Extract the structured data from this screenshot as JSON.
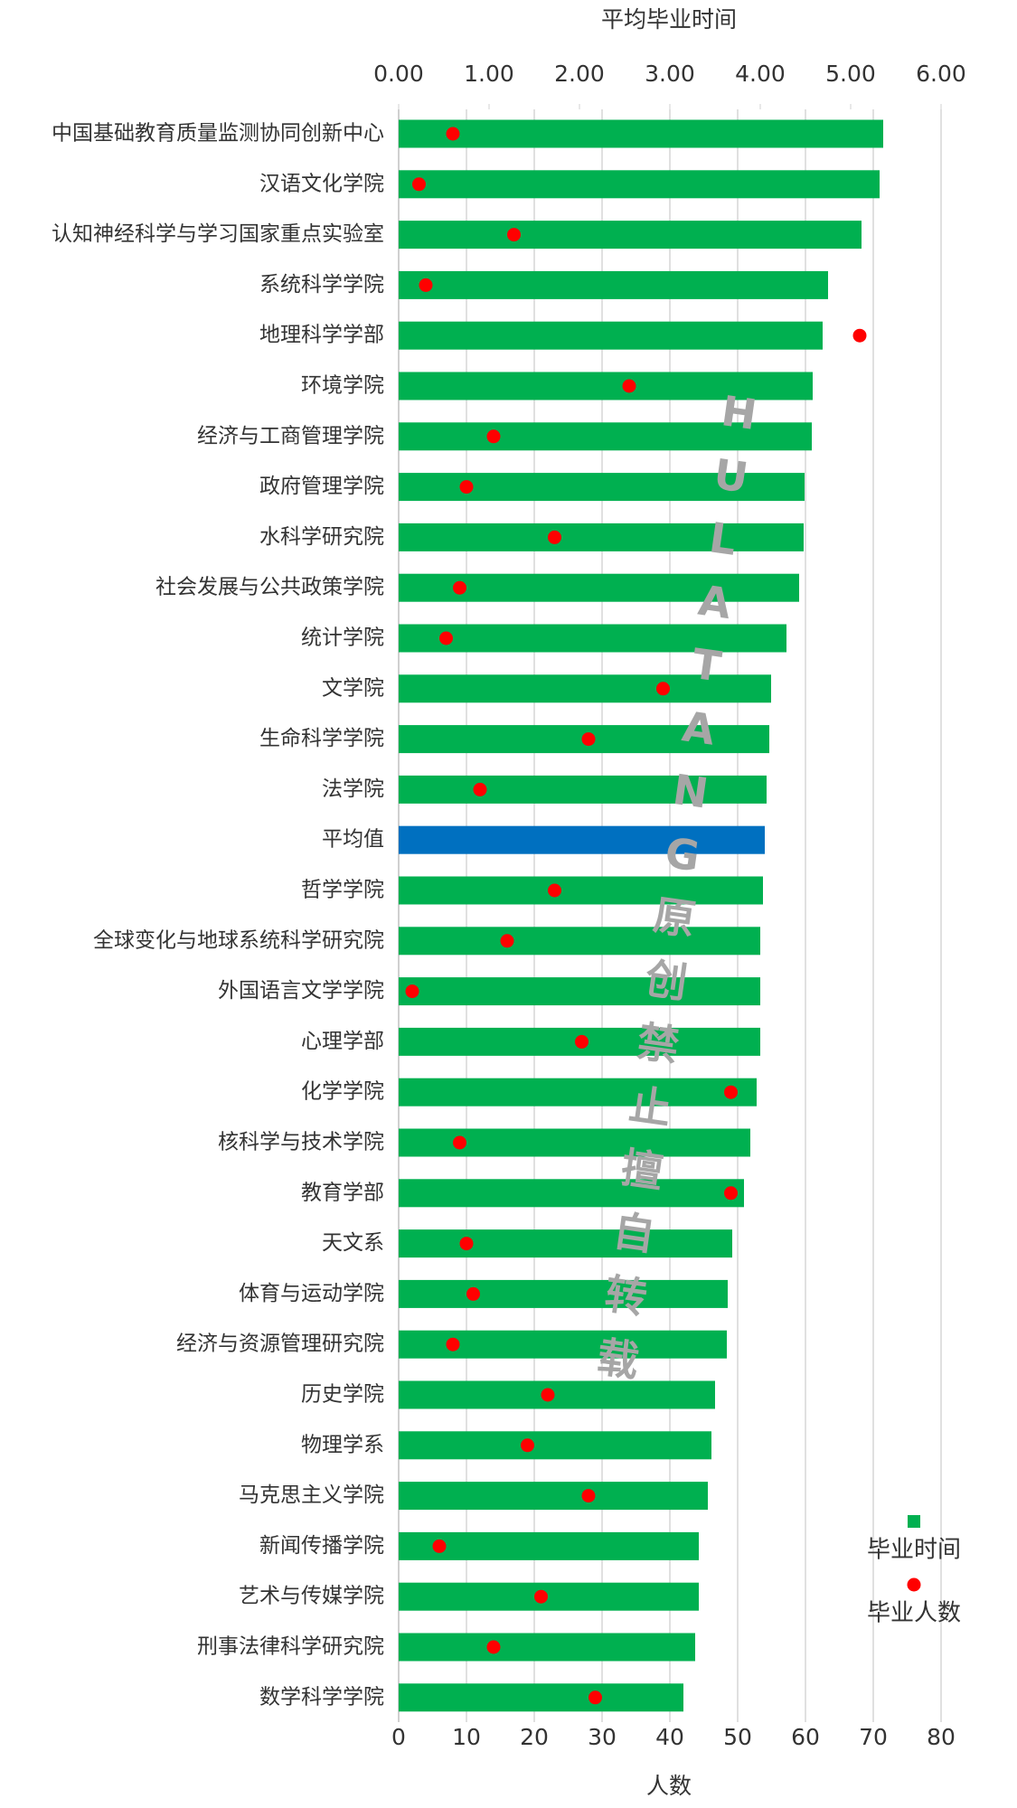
{
  "chart_data": {
    "type": "bar",
    "x2label": "平均毕业时间",
    "xlabel": "人数",
    "watermark": [
      "H",
      "U",
      "L",
      "A",
      "T",
      "A",
      "N",
      "G",
      "原",
      "创",
      "禁",
      "止",
      "擅",
      "自",
      "转",
      "载"
    ],
    "categories": [
      "中国基础教育质量监测协同创新中心",
      "汉语文化学院",
      "认知神经科学与学习国家重点实验室",
      "系统科学学院",
      "地理科学学部",
      "环境学院",
      "经济与工商管理学院",
      "政府管理学院",
      "水科学研究院",
      "社会发展与公共政策学院",
      "统计学院",
      "文学院",
      "生命科学学院",
      "法学院",
      "平均值",
      "哲学学院",
      "全球变化与地球系统科学研究院",
      "外国语言文学学院",
      "心理学部",
      "化学学院",
      "核科学与技术学院",
      "教育学部",
      "天文系",
      "体育与运动学院",
      "经济与资源管理研究院",
      "历史学院",
      "物理学系",
      "马克思主义学院",
      "新闻传播学院",
      "艺术与传媒学院",
      "刑事法律科学研究院",
      "数学科学学院"
    ],
    "series": [
      {
        "name": "毕业时间",
        "type": "bar",
        "axis": "x2",
        "color": "#00b050",
        "colors": [
          "#00b050",
          "#00b050",
          "#00b050",
          "#00b050",
          "#00b050",
          "#00b050",
          "#00b050",
          "#00b050",
          "#00b050",
          "#00b050",
          "#00b050",
          "#00b050",
          "#00b050",
          "#00b050",
          "#0070c0",
          "#00b050",
          "#00b050",
          "#00b050",
          "#00b050",
          "#00b050",
          "#00b050",
          "#00b050",
          "#00b050",
          "#00b050",
          "#00b050",
          "#00b050",
          "#00b050",
          "#00b050",
          "#00b050",
          "#00b050",
          "#00b050",
          "#00b050"
        ],
        "values": [
          5.36,
          5.32,
          5.12,
          4.75,
          4.69,
          4.58,
          4.57,
          4.49,
          4.48,
          4.43,
          4.29,
          4.12,
          4.1,
          4.07,
          4.05,
          4.03,
          4.0,
          4.0,
          4.0,
          3.96,
          3.89,
          3.82,
          3.69,
          3.64,
          3.63,
          3.5,
          3.46,
          3.42,
          3.32,
          3.32,
          3.28,
          3.15
        ]
      },
      {
        "name": "毕业人数",
        "type": "scatter",
        "axis": "x",
        "color": "#ff0000",
        "values": [
          8,
          3,
          17,
          4,
          68,
          34,
          14,
          10,
          23,
          9,
          7,
          39,
          28,
          12,
          null,
          23,
          16,
          2,
          27,
          49,
          9,
          49,
          10,
          11,
          8,
          22,
          19,
          28,
          6,
          21,
          14,
          29
        ]
      }
    ],
    "x2lim": [
      0,
      6
    ],
    "x2ticks": [
      {
        "value": 0,
        "label": "0.00"
      },
      {
        "value": 1,
        "label": "1.00"
      },
      {
        "value": 2,
        "label": "2.00"
      },
      {
        "value": 3,
        "label": "3.00"
      },
      {
        "value": 4,
        "label": "4.00"
      },
      {
        "value": 5,
        "label": "5.00"
      },
      {
        "value": 6,
        "label": "6.00"
      }
    ],
    "xlim": [
      0,
      80
    ],
    "xticks": [
      0,
      10,
      20,
      30,
      40,
      50,
      60,
      70,
      80
    ],
    "grid": true,
    "legend": "bottom-right"
  }
}
